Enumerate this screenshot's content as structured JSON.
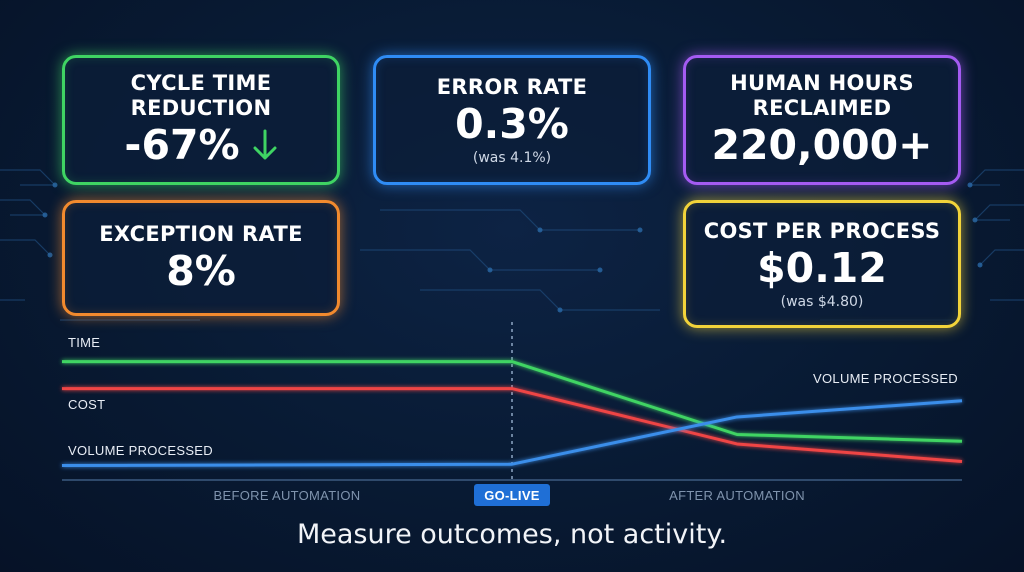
{
  "cards": {
    "cycle_time": {
      "title_line1": "CYCLE TIME",
      "title_line2": "REDUCTION",
      "value": "-67%",
      "icon": "down-arrow-icon",
      "color": "#3fd463"
    },
    "error_rate": {
      "title": "ERROR RATE",
      "value": "0.3%",
      "sub": "(was 4.1%)",
      "color": "#2f8cf5"
    },
    "human_hours": {
      "title_line1": "HUMAN HOURS",
      "title_line2": "RECLAIMED",
      "value": "220,000+",
      "color": "#a45bf2"
    },
    "exception_rate": {
      "title": "EXCEPTION RATE",
      "value": "8%",
      "color": "#f28a2e"
    },
    "cost_per_process": {
      "title": "COST PER PROCESS",
      "value": "$0.12",
      "sub": "(was $4.80)",
      "color": "#f2d33a"
    }
  },
  "chart_data": {
    "type": "line",
    "x_labels": [
      "BEFORE AUTOMATION",
      "GO-LIVE",
      "AFTER AUTOMATION"
    ],
    "marker_label": "GO-LIVE",
    "x_range": [
      0,
      100
    ],
    "y_range": [
      0,
      100
    ],
    "grid": false,
    "series": [
      {
        "name": "TIME",
        "color": "#3fd463",
        "points": [
          [
            0,
            84
          ],
          [
            50,
            84
          ],
          [
            75,
            30
          ],
          [
            100,
            25
          ]
        ]
      },
      {
        "name": "COST",
        "color": "#ef4444",
        "points": [
          [
            0,
            64
          ],
          [
            50,
            64
          ],
          [
            75,
            23
          ],
          [
            100,
            10
          ]
        ]
      },
      {
        "name": "VOLUME PROCESSED",
        "color": "#3b8eea",
        "points": [
          [
            0,
            7
          ],
          [
            50,
            8
          ],
          [
            75,
            43
          ],
          [
            100,
            55
          ]
        ]
      }
    ],
    "series_labels": [
      "TIME",
      "COST",
      "VOLUME PROCESSED",
      "VOLUME PROCESSED"
    ]
  },
  "tagline": "Measure outcomes, not activity."
}
